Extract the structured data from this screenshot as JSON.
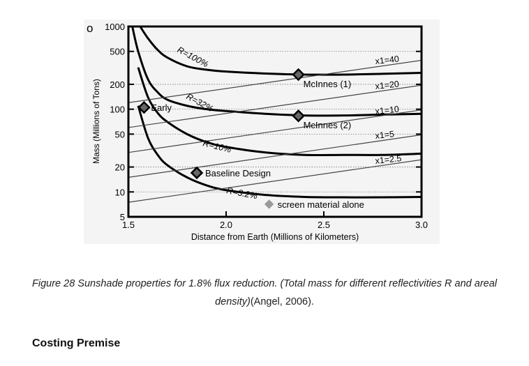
{
  "figure": {
    "corner_glyph": "o",
    "chart_data": {
      "type": "line",
      "xlabel": "Distance from Earth (Millions of Kilometers)",
      "ylabel": "Mass (Millions of Tons)",
      "y_scale": "log",
      "xlim": [
        1.5,
        3.0
      ],
      "ylim": [
        5,
        1000
      ],
      "x_ticks": [
        "1.5",
        "2.0",
        "2.5",
        "3.0"
      ],
      "y_ticks": [
        "5",
        "10",
        "20",
        "50",
        "100",
        "200",
        "500",
        "1000"
      ],
      "series": [
        {
          "name": "R=100%",
          "x": [
            1.56,
            1.6,
            1.65,
            1.7,
            1.8,
            1.9,
            2.0,
            2.2,
            2.4,
            2.6,
            2.8,
            3.0
          ],
          "y": [
            1000,
            720,
            520,
            420,
            330,
            300,
            285,
            270,
            262,
            262,
            268,
            275
          ]
        },
        {
          "name": "R=32%",
          "x": [
            1.52,
            1.55,
            1.6,
            1.65,
            1.7,
            1.8,
            1.9,
            2.0,
            2.2,
            2.4,
            2.6,
            2.8,
            3.0
          ],
          "y": [
            1000,
            500,
            230,
            160,
            130,
            110,
            100,
            95,
            88,
            84,
            84,
            86,
            88
          ]
        },
        {
          "name": "R=10%",
          "x": [
            1.55,
            1.6,
            1.65,
            1.7,
            1.8,
            1.9,
            2.0,
            2.2,
            2.4,
            2.6,
            2.8,
            3.0
          ],
          "y": [
            320,
            140,
            90,
            70,
            50,
            40,
            35,
            30,
            28,
            28,
            28,
            29
          ]
        },
        {
          "name": "R=3.2%",
          "x": [
            1.55,
            1.6,
            1.65,
            1.7,
            1.8,
            1.9,
            2.0,
            2.2,
            2.4,
            2.6,
            2.8,
            3.0
          ],
          "y": [
            110,
            45,
            28,
            21,
            15,
            12,
            10.5,
            9.2,
            8.7,
            8.6,
            8.6,
            8.7
          ]
        },
        {
          "name": "x1=40",
          "x": [
            1.5,
            3.0
          ],
          "y": [
            120,
            390
          ]
        },
        {
          "name": "x1=20",
          "x": [
            1.5,
            3.0
          ],
          "y": [
            60,
            195
          ]
        },
        {
          "name": "x1=10",
          "x": [
            1.5,
            3.0
          ],
          "y": [
            30,
            98
          ]
        },
        {
          "name": "x1=5",
          "x": [
            1.5,
            3.0
          ],
          "y": [
            15,
            49
          ]
        },
        {
          "name": "x1=2.5",
          "x": [
            1.5,
            3.0
          ],
          "y": [
            7.5,
            24.5
          ]
        }
      ],
      "points": [
        {
          "label": "Early",
          "x": 1.58,
          "y": 105
        },
        {
          "label": "McInnes (1)",
          "x": 2.37,
          "y": 262
        },
        {
          "label": "McInnes (2)",
          "x": 2.37,
          "y": 83
        },
        {
          "label": "Baseline Design",
          "x": 1.85,
          "y": 17
        },
        {
          "label": "screen material alone",
          "x": 2.22,
          "y": 7.1
        }
      ],
      "curve_labels": [
        "R=100%",
        "R=32%",
        "R=10%",
        "R=3.2%"
      ],
      "line_labels": [
        "x1=40",
        "x1=20",
        "x1=10",
        "x1=5",
        "x1=2.5"
      ],
      "grid": true
    }
  },
  "caption": {
    "italic": "Figure 28 Sunshade properties for 1.8% flux reduction. (Total mass for different reflectivities R and areal density)",
    "citation": "(Angel, 2006)."
  },
  "section": {
    "heading": "Costing Premise"
  }
}
